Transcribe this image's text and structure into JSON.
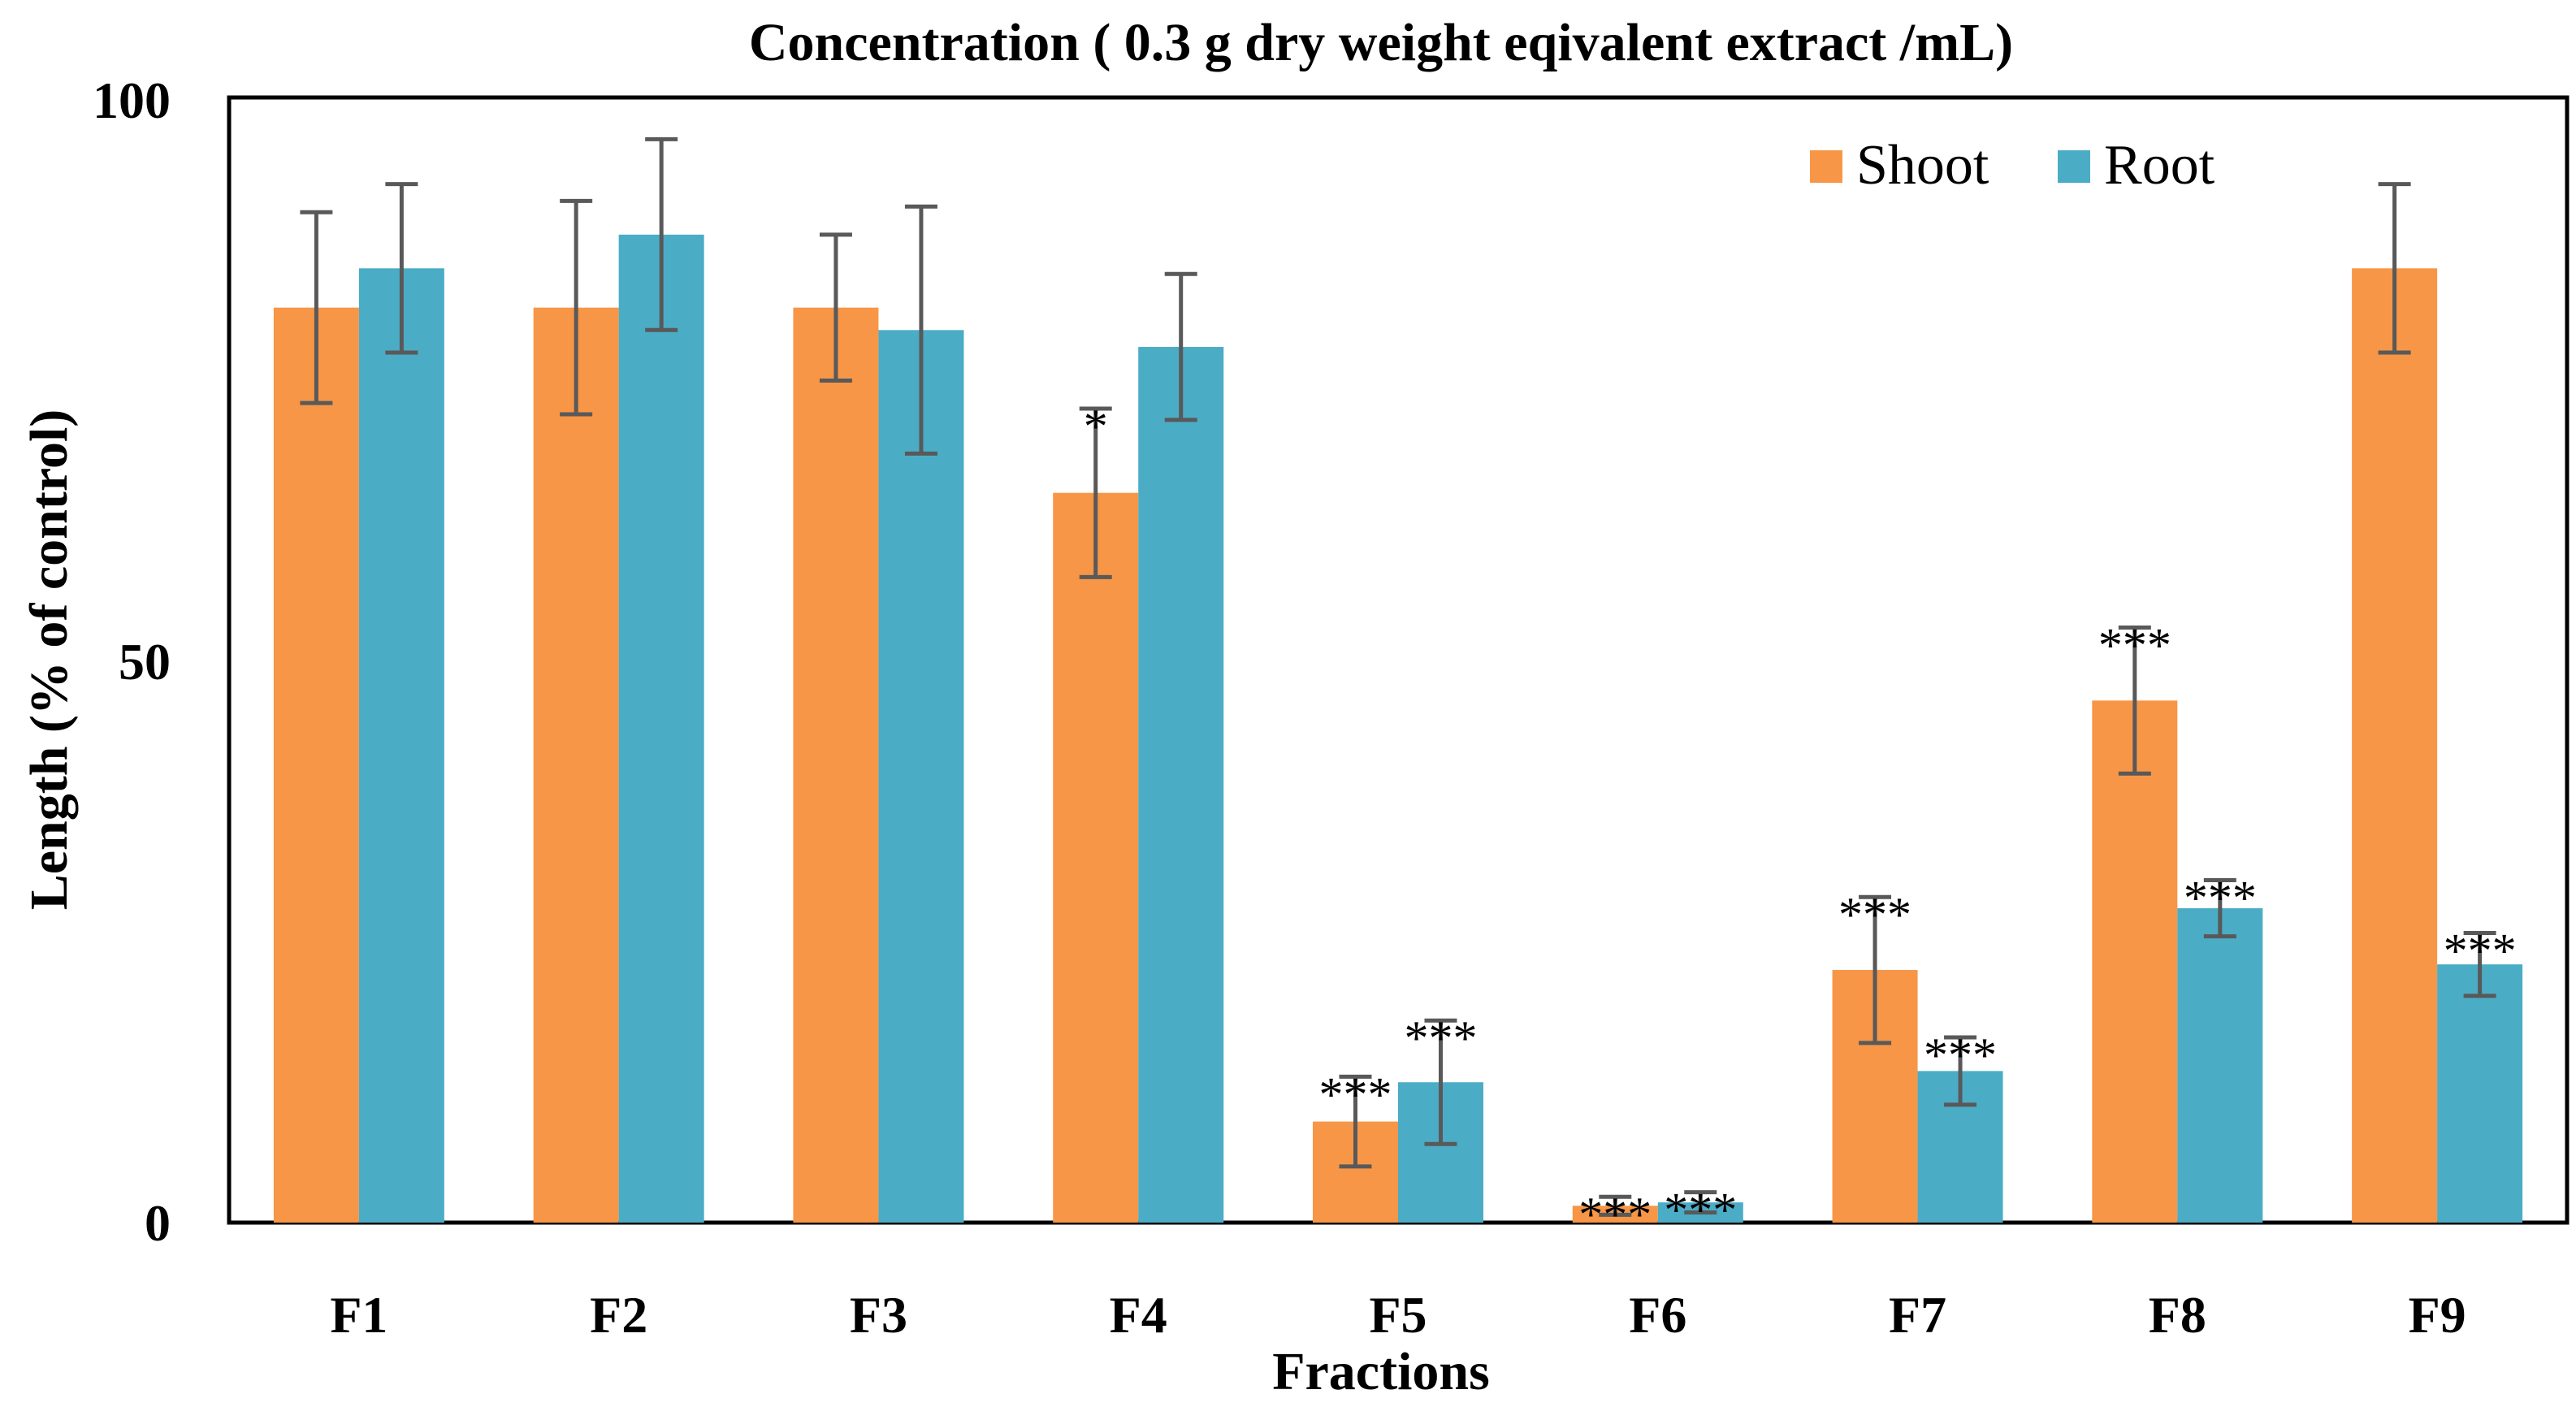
{
  "colors": {
    "shoot": "#F79646",
    "root": "#4BACC6",
    "error": "#595959",
    "axis": "#000000"
  },
  "chart_data": {
    "type": "bar",
    "title": "Concentration ( 0.3 g dry weight eqivalent extract /mL)",
    "xlabel": "Fractions",
    "ylabel": "Length (% of control)",
    "ylim": [
      0,
      100
    ],
    "yticks": [
      0,
      50,
      100
    ],
    "legend_position": "top-right",
    "grid": false,
    "categories": [
      "F1",
      "F2",
      "F3",
      "F4",
      "F5",
      "F6",
      "F7",
      "F8",
      "F9"
    ],
    "series": [
      {
        "name": "Shoot",
        "values": [
          81.5,
          81.5,
          81.5,
          65.0,
          9.0,
          1.5,
          22.5,
          46.5,
          85.0
        ],
        "errors": [
          8.5,
          9.5,
          6.5,
          7.5,
          4.0,
          0.8,
          6.5,
          6.5,
          7.5
        ],
        "annotations": [
          "",
          "",
          "",
          "*",
          "***",
          "***",
          "***",
          "***",
          ""
        ]
      },
      {
        "name": "Root",
        "values": [
          85.0,
          88.0,
          79.5,
          78.0,
          12.5,
          1.8,
          13.5,
          28.0,
          23.0
        ],
        "errors": [
          7.5,
          8.5,
          11.0,
          6.5,
          5.5,
          0.9,
          3.0,
          2.5,
          2.8
        ],
        "annotations": [
          "",
          "",
          "",
          "",
          "***",
          "***",
          "***",
          "***",
          "***"
        ]
      }
    ]
  }
}
